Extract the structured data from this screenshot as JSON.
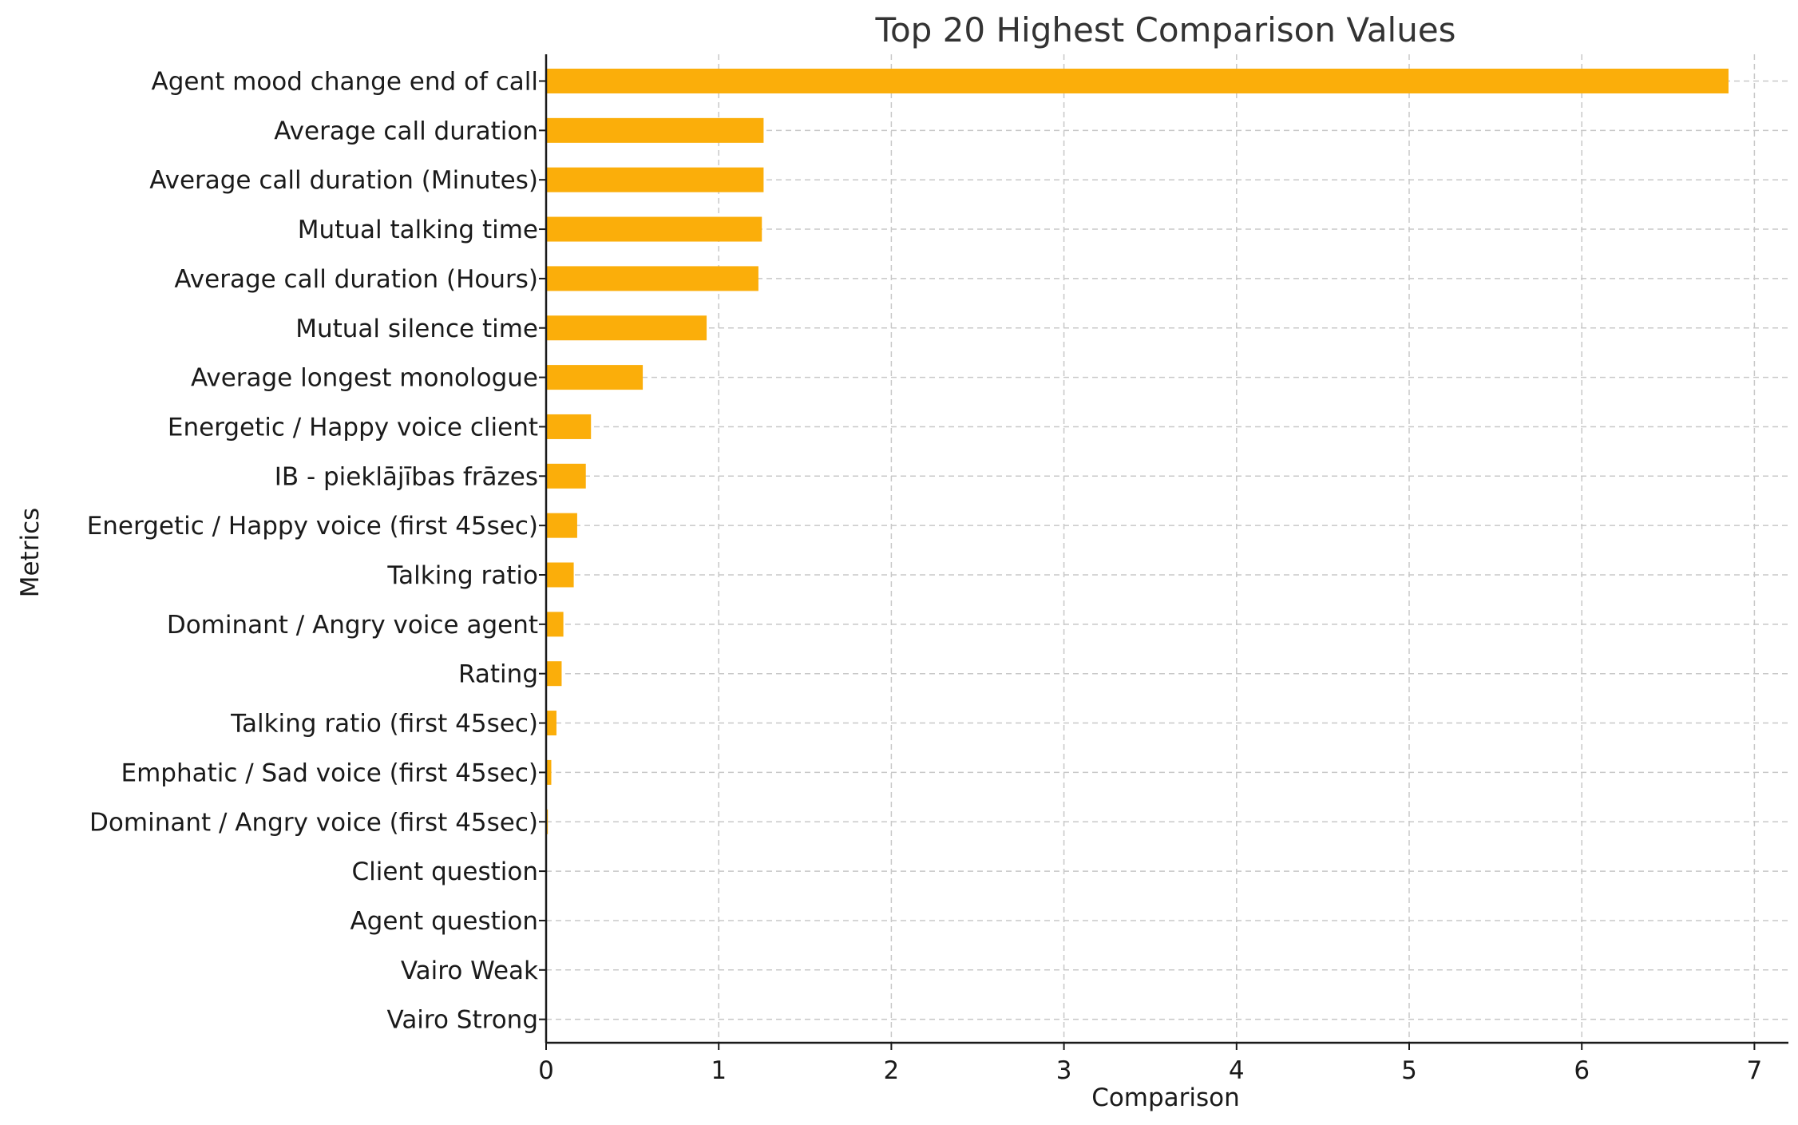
{
  "chart_data": {
    "type": "bar",
    "orientation": "horizontal",
    "title": "Top 20 Highest Comparison Values",
    "xlabel": "Comparison",
    "ylabel": "Metrics",
    "xlim": [
      0,
      7.2
    ],
    "xticks": [
      "0",
      "1",
      "2",
      "3",
      "4",
      "5",
      "6",
      "7"
    ],
    "grid": true,
    "bar_color": "#FBAE0A",
    "categories": [
      "Agent mood change end of call",
      "Average call duration",
      "Average call duration (Minutes)",
      "Mutual talking time",
      "Average call duration (Hours)",
      "Mutual silence time",
      "Average longest monologue",
      "Energetic / Happy voice client ",
      "IB - pieklājības frāzes",
      "Energetic / Happy voice (first 45sec)",
      "Talking ratio",
      "Dominant / Angry voice agent",
      "Rating",
      "Talking ratio  (first 45sec)",
      "Emphatic / Sad voice (first 45sec)",
      "Dominant / Angry voice (first 45sec)",
      "Client question",
      "Agent question",
      "Vairo Weak",
      "Vairo Strong"
    ],
    "values": [
      6.85,
      1.26,
      1.26,
      1.25,
      1.23,
      0.93,
      0.56,
      0.26,
      0.23,
      0.18,
      0.16,
      0.1,
      0.09,
      0.06,
      0.03,
      0.01,
      0.0,
      0.0,
      0.0,
      0.0
    ]
  }
}
